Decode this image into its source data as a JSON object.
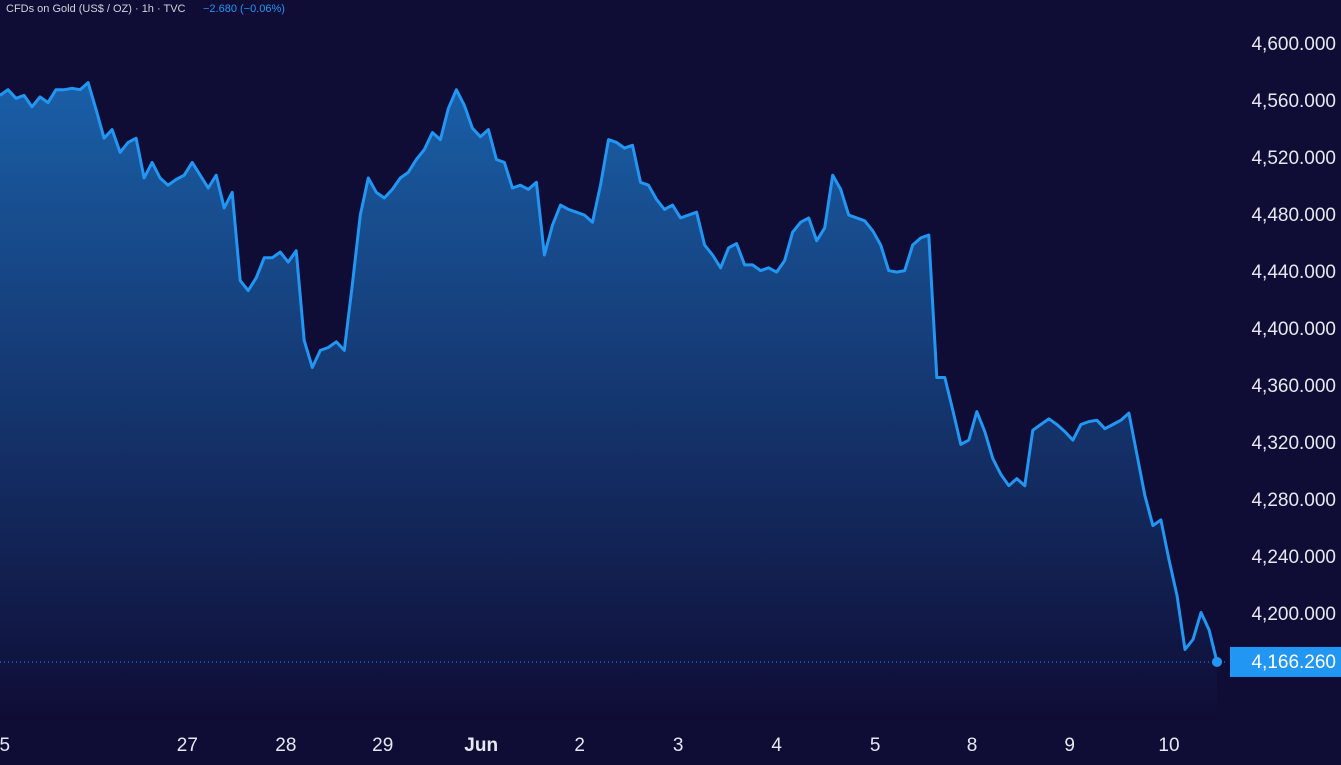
{
  "chart_data": {
    "type": "area",
    "title": "CFDs on Gold (US$ / OZ) · 1h · TVC",
    "change": "−2.680 (−0.06%)",
    "color": "#2196f3",
    "values": [
      4564,
      4568,
      4562,
      4564,
      4556,
      4563,
      4559,
      4568,
      4568,
      4569,
      4568,
      4573,
      4554,
      4534,
      4540,
      4524,
      4531,
      4534,
      4506,
      4517,
      4506,
      4501,
      4505,
      4508,
      4517,
      4508,
      4499,
      4508,
      4485,
      4496,
      4434,
      4427,
      4436,
      4450,
      4450,
      4454,
      4447,
      4455,
      4392,
      4373,
      4385,
      4387,
      4391,
      4385,
      4431,
      4480,
      4506,
      4496,
      4492,
      4498,
      4506,
      4510,
      4519,
      4526,
      4538,
      4533,
      4555,
      4568,
      4557,
      4541,
      4535,
      4540,
      4519,
      4517,
      4499,
      4501,
      4498,
      4503,
      4452,
      4473,
      4487,
      4484,
      4482,
      4480,
      4475,
      4501,
      4533,
      4531,
      4527,
      4529,
      4503,
      4501,
      4491,
      4484,
      4487,
      4478,
      4480,
      4482,
      4459,
      4452,
      4443,
      4457,
      4460,
      4445,
      4445,
      4441,
      4443,
      4440,
      4448,
      4468,
      4475,
      4478,
      4462,
      4471,
      4508,
      4498,
      4480,
      4478,
      4476,
      4469,
      4459,
      4441,
      4440,
      4441,
      4459,
      4464,
      4466,
      4366,
      4366,
      4343,
      4319,
      4322,
      4342,
      4328,
      4309,
      4298,
      4290,
      4295,
      4290,
      4329,
      4333,
      4337,
      4333,
      4328,
      4322,
      4333,
      4335,
      4336,
      4330,
      4333,
      4336,
      4341,
      4312,
      4283,
      4262,
      4266,
      4238,
      4213,
      4175,
      4182,
      4201,
      4189,
      4166.26
    ],
    "last_price": {
      "value": 4166.26,
      "label": "4,166.260"
    },
    "xlim": [
      0,
      153
    ],
    "xticks": [
      {
        "value": 0.6,
        "label": "5"
      },
      {
        "value": 23.4,
        "label": "27"
      },
      {
        "value": 35.7,
        "label": "28"
      },
      {
        "value": 47.8,
        "label": "29"
      },
      {
        "value": 60.1,
        "label": "Jun"
      },
      {
        "value": 72.4,
        "label": "2"
      },
      {
        "value": 84.7,
        "label": "3"
      },
      {
        "value": 97.0,
        "label": "4"
      },
      {
        "value": 109.3,
        "label": "5"
      },
      {
        "value": 121.4,
        "label": "8"
      },
      {
        "value": 133.6,
        "label": "9"
      },
      {
        "value": 146.0,
        "label": "10"
      }
    ],
    "ylim": [
      4122,
      4631
    ],
    "yticks": [
      {
        "value": 4600,
        "label": "4,600.000"
      },
      {
        "value": 4560,
        "label": "4,560.000"
      },
      {
        "value": 4520,
        "label": "4,520.000"
      },
      {
        "value": 4480,
        "label": "4,480.000"
      },
      {
        "value": 4440,
        "label": "4,440.000"
      },
      {
        "value": 4400,
        "label": "4,400.000"
      },
      {
        "value": 4360,
        "label": "4,360.000"
      },
      {
        "value": 4320,
        "label": "4,320.000"
      },
      {
        "value": 4280,
        "label": "4,280.000"
      },
      {
        "value": 4240,
        "label": "4,240.000"
      },
      {
        "value": 4200,
        "label": "4,200.000"
      }
    ]
  }
}
